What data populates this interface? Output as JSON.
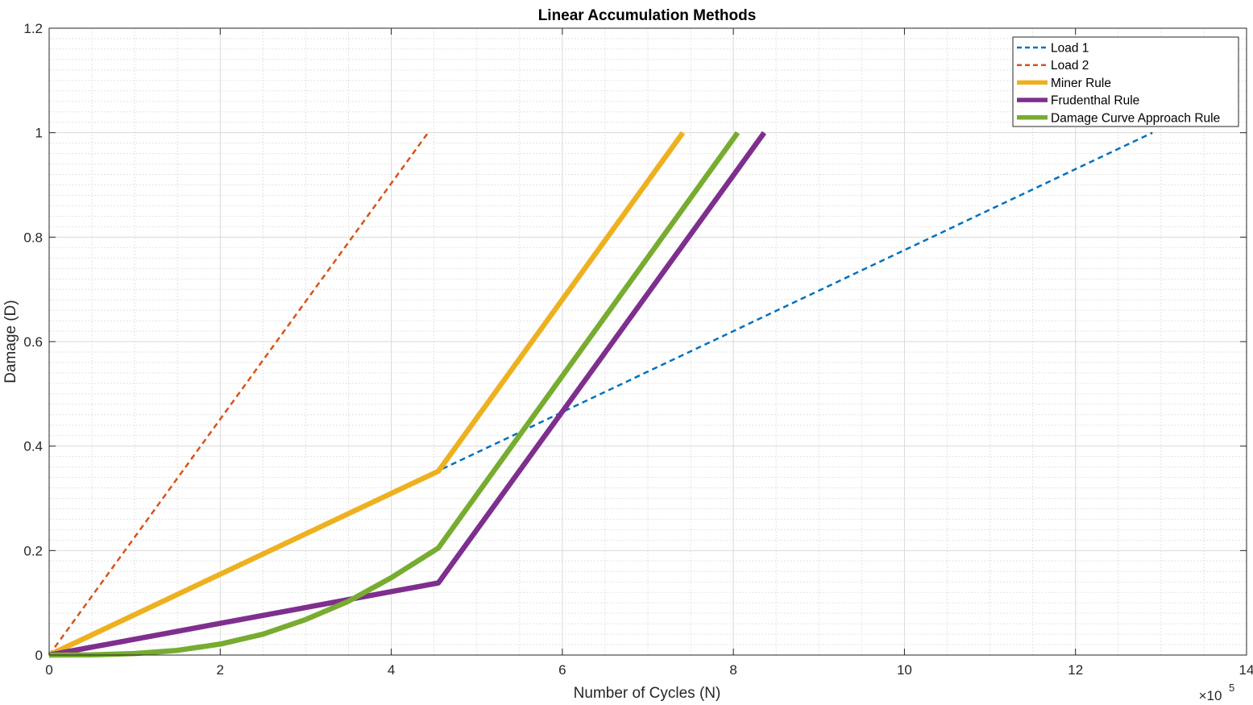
{
  "chart_data": {
    "type": "line",
    "title": "Linear Accumulation Methods",
    "xlabel": "Number of Cycles (N)",
    "ylabel": "Damage (D)",
    "x_exponent_base": "×10",
    "x_exponent_power": "5",
    "xlim": [
      0,
      14
    ],
    "ylim": [
      0,
      1.2
    ],
    "xticks": [
      0,
      2,
      4,
      6,
      8,
      10,
      12,
      14
    ],
    "xtick_labels": [
      "0",
      "2",
      "4",
      "6",
      "8",
      "10",
      "12",
      "14"
    ],
    "yticks": [
      0,
      0.2,
      0.4,
      0.6,
      0.8,
      1.0,
      1.2
    ],
    "ytick_labels": [
      "0",
      "0.2",
      "0.4",
      "0.6",
      "0.8",
      "1",
      "1.2"
    ],
    "grid": true,
    "minor_grid": true,
    "legend_position": "top-right",
    "series": [
      {
        "name": "Load 1",
        "color": "#0072BD",
        "style": "dashed",
        "width": 2.5,
        "x": [
          0,
          12.9
        ],
        "y": [
          0,
          1.0
        ]
      },
      {
        "name": "Load 2",
        "color": "#D95319",
        "style": "dashed",
        "width": 2.5,
        "x": [
          0,
          4.43
        ],
        "y": [
          0,
          1.0
        ]
      },
      {
        "name": "Miner Rule",
        "color": "#EDB120",
        "style": "solid",
        "width": 6.5,
        "x": [
          0,
          4.55,
          7.41
        ],
        "y": [
          0,
          0.352,
          1.0
        ]
      },
      {
        "name": "Frudenthal Rule",
        "color": "#7E2F8E",
        "style": "solid",
        "width": 6.5,
        "x": [
          0,
          4.55,
          8.36
        ],
        "y": [
          0,
          0.138,
          1.0
        ]
      },
      {
        "name": "Damage Curve Approach Rule",
        "color": "#77AC30",
        "style": "solid",
        "width": 6.5,
        "x": [
          0,
          0.5,
          1.0,
          1.5,
          2.0,
          2.5,
          3.0,
          3.5,
          4.0,
          4.55,
          8.05
        ],
        "y": [
          0,
          0.0003,
          0.003,
          0.009,
          0.021,
          0.04,
          0.068,
          0.103,
          0.148,
          0.205,
          1.0
        ]
      }
    ]
  }
}
